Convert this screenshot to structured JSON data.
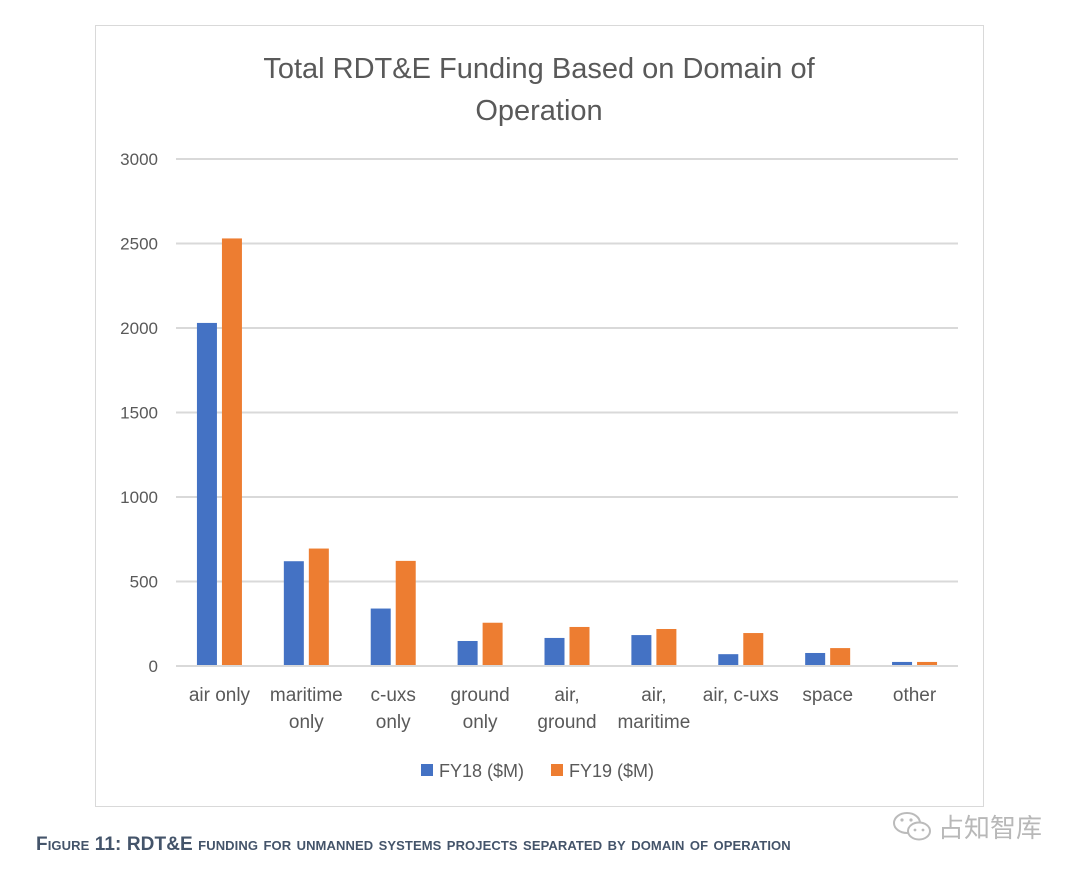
{
  "chart_data": {
    "type": "bar",
    "title": "Total RDT&E Funding Based on Domain of Operation",
    "title_lines": [
      "Total RDT&E Funding Based on Domain of",
      "Operation"
    ],
    "xlabel": "",
    "ylabel": "",
    "ylim": [
      0,
      3000
    ],
    "yticks": [
      "0",
      "500",
      "1000",
      "1500",
      "2000",
      "2500",
      "3000"
    ],
    "ytick_values": [
      0,
      500,
      1000,
      1500,
      2000,
      2500,
      3000
    ],
    "grid": true,
    "legend_position": "bottom",
    "categories": [
      "air only",
      "maritime only",
      "c-uxs only",
      "ground only",
      "air, ground",
      "air, maritime",
      "air, c-uxs",
      "space",
      "other"
    ],
    "category_lines": [
      [
        "air only"
      ],
      [
        "maritime",
        "only"
      ],
      [
        "c-uxs",
        "only"
      ],
      [
        "ground",
        "only"
      ],
      [
        "air,",
        "ground"
      ],
      [
        "air,",
        "maritime"
      ],
      [
        "air, c-uxs"
      ],
      [
        "space"
      ],
      [
        "other"
      ]
    ],
    "series": [
      {
        "name": "FY18 ($M)",
        "color": "#4472c4",
        "values": [
          2030,
          620,
          340,
          148,
          166,
          183,
          70,
          77,
          24
        ]
      },
      {
        "name": "FY19 ($M)",
        "color": "#ed7d31",
        "values": [
          2530,
          695,
          622,
          256,
          231,
          219,
          195,
          106,
          24
        ]
      }
    ]
  },
  "caption": "Figure 11: RDT&E funding for unmanned systems projects separated by domain of operation",
  "watermark": "占知智库"
}
